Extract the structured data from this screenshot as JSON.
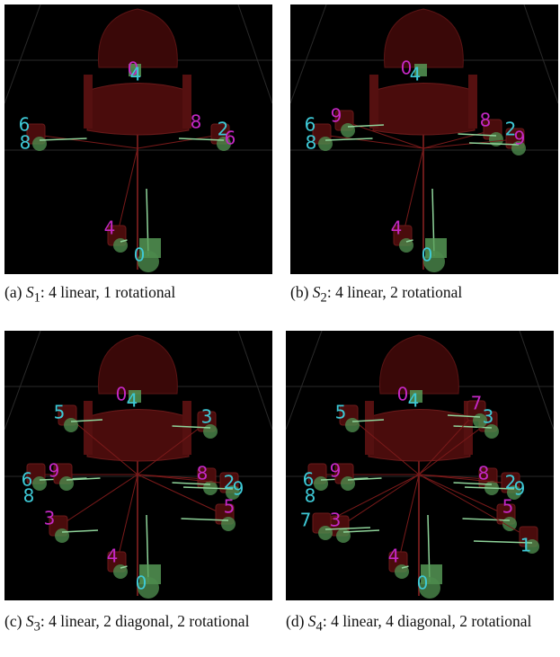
{
  "panels": [
    {
      "labels": [
        {
          "text": "0",
          "color": "#c428c4"
        },
        {
          "text": "4",
          "color": "#3ec9d6"
        },
        {
          "text": "6",
          "color": "#3ec9d6"
        },
        {
          "text": "8",
          "color": "#3ec9d6"
        },
        {
          "text": "8",
          "color": "#c428c4"
        },
        {
          "text": "2",
          "color": "#3ec9d6"
        },
        {
          "text": "6",
          "color": "#c428c4"
        },
        {
          "text": "4",
          "color": "#c428c4"
        },
        {
          "text": "0",
          "color": "#3ec9d6"
        }
      ],
      "caption": {
        "tag": "(a)",
        "symbol": "S",
        "subscript": "1",
        "text": ": 4 linear, 1 rotational"
      }
    },
    {
      "labels": [
        {
          "text": "0",
          "color": "#c428c4"
        },
        {
          "text": "4",
          "color": "#3ec9d6"
        },
        {
          "text": "9",
          "color": "#c428c4"
        },
        {
          "text": "6",
          "color": "#3ec9d6"
        },
        {
          "text": "8",
          "color": "#3ec9d6"
        },
        {
          "text": "8",
          "color": "#c428c4"
        },
        {
          "text": "2",
          "color": "#3ec9d6"
        },
        {
          "text": "9",
          "color": "#c428c4"
        },
        {
          "text": "4",
          "color": "#c428c4"
        },
        {
          "text": "0",
          "color": "#3ec9d6"
        }
      ],
      "caption": {
        "tag": "(b)",
        "symbol": "S",
        "subscript": "2",
        "text": ": 4 linear, 2 rotational"
      }
    },
    {
      "labels": [
        {
          "text": "0",
          "color": "#c428c4"
        },
        {
          "text": "4",
          "color": "#3ec9d6"
        },
        {
          "text": "5",
          "color": "#3ec9d6"
        },
        {
          "text": "3",
          "color": "#3ec9d6"
        },
        {
          "text": "6",
          "color": "#3ec9d6"
        },
        {
          "text": "9",
          "color": "#c428c4"
        },
        {
          "text": "8",
          "color": "#3ec9d6"
        },
        {
          "text": "8",
          "color": "#c428c4"
        },
        {
          "text": "2",
          "color": "#3ec9d6"
        },
        {
          "text": "9",
          "color": "#3ec9d6"
        },
        {
          "text": "3",
          "color": "#c428c4"
        },
        {
          "text": "5",
          "color": "#c428c4"
        },
        {
          "text": "4",
          "color": "#c428c4"
        },
        {
          "text": "0",
          "color": "#3ec9d6"
        }
      ],
      "caption": {
        "tag": "(c)",
        "symbol": "S",
        "subscript": "3",
        "text": ": 4 linear, 2 diagonal, 2 rotational"
      }
    },
    {
      "labels": [
        {
          "text": "0",
          "color": "#c428c4"
        },
        {
          "text": "4",
          "color": "#3ec9d6"
        },
        {
          "text": "5",
          "color": "#3ec9d6"
        },
        {
          "text": "3",
          "color": "#3ec9d6"
        },
        {
          "text": "6",
          "color": "#3ec9d6"
        },
        {
          "text": "9",
          "color": "#c428c4"
        },
        {
          "text": "8",
          "color": "#3ec9d6"
        },
        {
          "text": "8",
          "color": "#c428c4"
        },
        {
          "text": "2",
          "color": "#3ec9d6"
        },
        {
          "text": "9",
          "color": "#3ec9d6"
        },
        {
          "text": "3",
          "color": "#c428c4"
        },
        {
          "text": "5",
          "color": "#c428c4"
        },
        {
          "text": "4",
          "color": "#c428c4"
        },
        {
          "text": "0",
          "color": "#3ec9d6"
        },
        {
          "text": "7",
          "color": "#c428c4"
        },
        {
          "text": "7",
          "color": "#3ec9d6"
        },
        {
          "text": "1",
          "color": "#3ec9d6"
        }
      ],
      "caption": {
        "tag": "(d)",
        "symbol": "S",
        "subscript": "4",
        "text": ": 4 linear, 4 diagonal, 2 rotational"
      }
    }
  ]
}
